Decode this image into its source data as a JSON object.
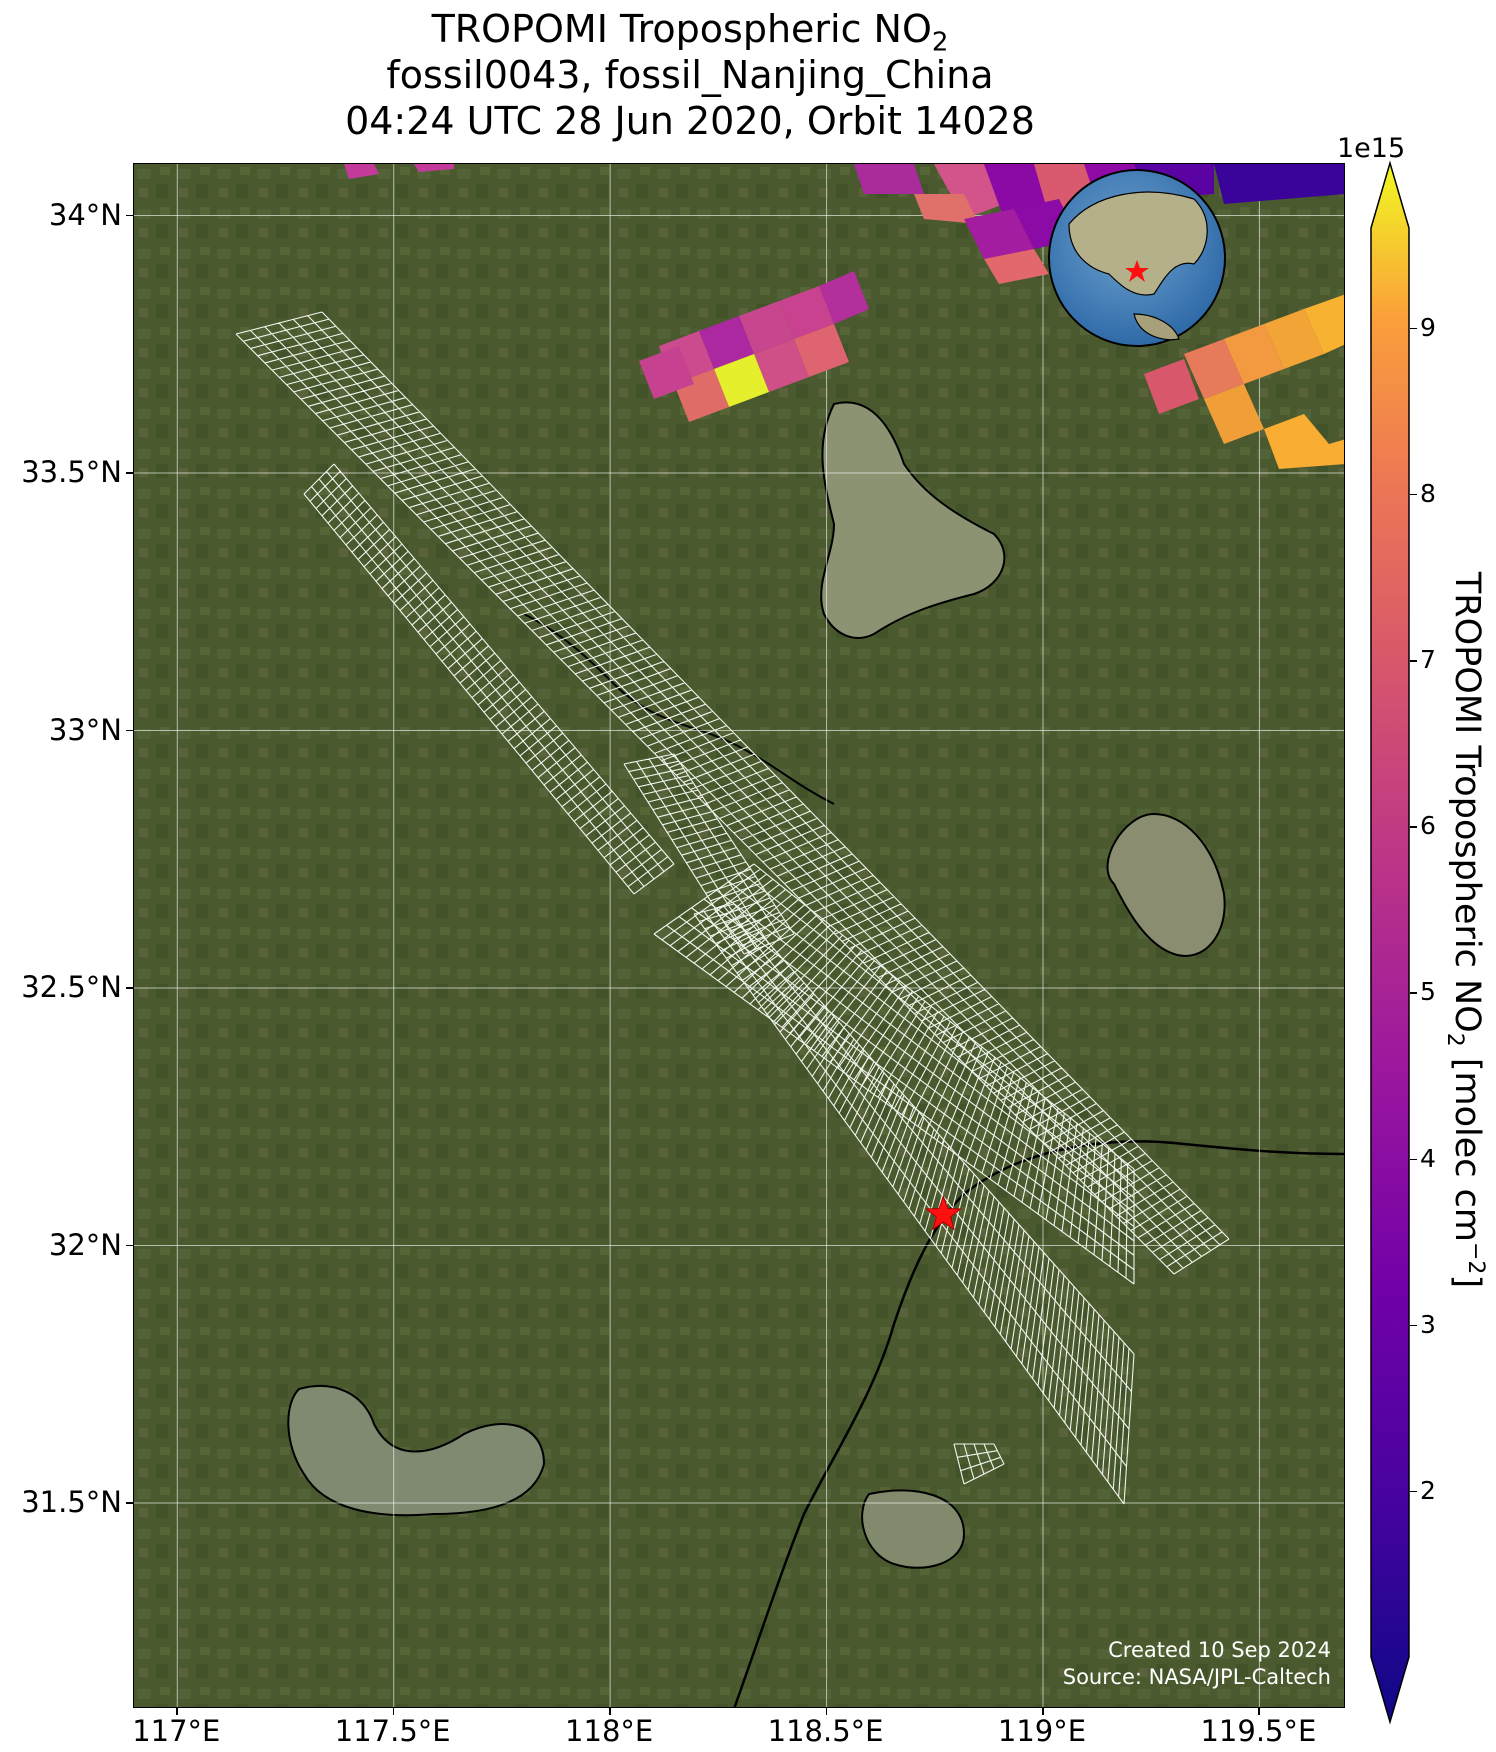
{
  "title": {
    "line1_prefix": "TROPOMI Tropospheric NO",
    "line1_sub": "2",
    "line2": "fossil0043, fossil_Nanjing_China",
    "line3": "04:24 UTC 28 Jun 2020, Orbit 14028"
  },
  "map": {
    "lon_range": [
      116.9,
      119.7
    ],
    "lat_range": [
      31.1,
      34.1
    ],
    "target_site": {
      "lon": 118.77,
      "lat": 32.06,
      "marker": "red-star"
    },
    "inset": "globe-locator-asia"
  },
  "axes": {
    "y_ticks": [
      "34°N",
      "33.5°N",
      "33°N",
      "32.5°N",
      "32°N",
      "31.5°N"
    ],
    "y_values": [
      34.0,
      33.5,
      33.0,
      32.5,
      32.0,
      31.5
    ],
    "x_ticks": [
      "117°E",
      "117.5°E",
      "118°E",
      "118.5°E",
      "119°E",
      "119.5°E"
    ],
    "x_values": [
      117.0,
      117.5,
      118.0,
      118.5,
      119.0,
      119.5
    ]
  },
  "colorbar": {
    "exponent": "1e15",
    "ticks": [
      "2",
      "3",
      "4",
      "5",
      "6",
      "7",
      "8",
      "9"
    ],
    "tick_values": [
      2,
      3,
      4,
      5,
      6,
      7,
      8,
      9
    ],
    "range": [
      1.0,
      9.6
    ],
    "colormap": "plasma",
    "label_prefix": "TROPOMI Tropospheric NO",
    "label_sub": "2",
    "label_mid": " [molec cm",
    "label_sup": "−2",
    "label_end": "]"
  },
  "credits": {
    "line1": "Created 10 Sep 2024",
    "line2": "Source: NASA/JPL-Caltech"
  }
}
